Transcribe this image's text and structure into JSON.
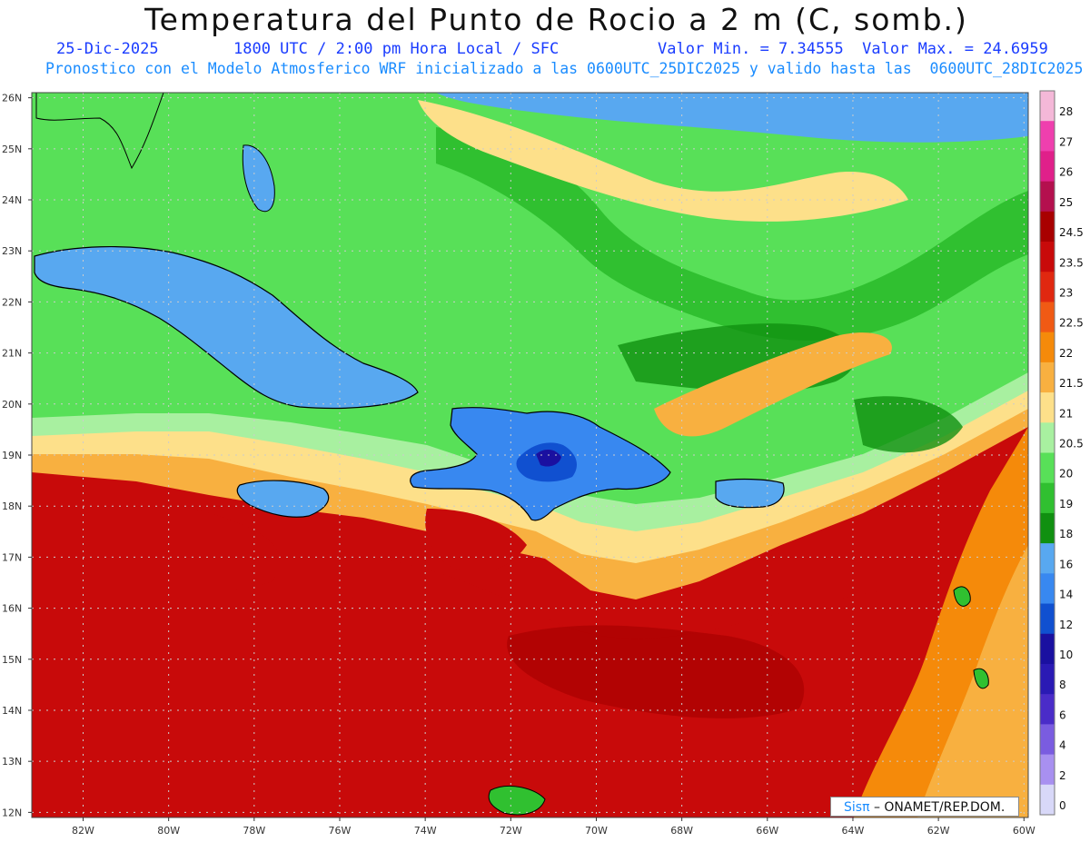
{
  "header": {
    "title": "Temperatura del Punto de Rocio a 2 m (C, somb.)",
    "date": "25-Dic-2025",
    "time": "1800 UTC / 2:00 pm Hora Local / SFC",
    "minmax": "Valor Min. = 7.34555  Valor Max. = 24.6959",
    "forecast": "Pronostico con el Modelo Atmosferico WRF inicializado a las 0600UTC_25DIC2025 y valido hasta las  0600UTC_28DIC2025"
  },
  "map": {
    "lon_range": [
      -83.2,
      -59.9
    ],
    "lat_range": [
      11.9,
      26.1
    ],
    "lat_labels": [
      "26N",
      "25N",
      "24N",
      "23N",
      "22N",
      "21N",
      "20N",
      "19N",
      "18N",
      "17N",
      "16N",
      "15N",
      "14N",
      "13N",
      "12N"
    ],
    "lon_labels": [
      "82W",
      "80W",
      "78W",
      "76W",
      "74W",
      "72W",
      "70W",
      "68W",
      "66W",
      "64W",
      "62W",
      "60W"
    ]
  },
  "colorbar": {
    "labels": [
      "28",
      "27",
      "26",
      "25",
      "24.5",
      "23.5",
      "23",
      "22.5",
      "22",
      "21.5",
      "21",
      "20.5",
      "20",
      "19",
      "18",
      "16",
      "14",
      "12",
      "10",
      "8",
      "6",
      "4",
      "2",
      "0"
    ],
    "colors": [
      "#f4b8d8",
      "#ef3fae",
      "#e0208a",
      "#b4104e",
      "#a80000",
      "#c80a0a",
      "#e02810",
      "#f05a14",
      "#f58a0a",
      "#f8b040",
      "#fde08a",
      "#a8f0a0",
      "#58e058",
      "#30c030",
      "#109010",
      "#58a8f0",
      "#3888f0",
      "#1050d0",
      "#1a10a0",
      "#2a1ab4",
      "#4a2cc8",
      "#7a5ce0",
      "#a890f0",
      "#d8d8f8"
    ]
  },
  "credit": {
    "brand": "Sisπ",
    "text": " – ONAMET/REP.DOM."
  }
}
